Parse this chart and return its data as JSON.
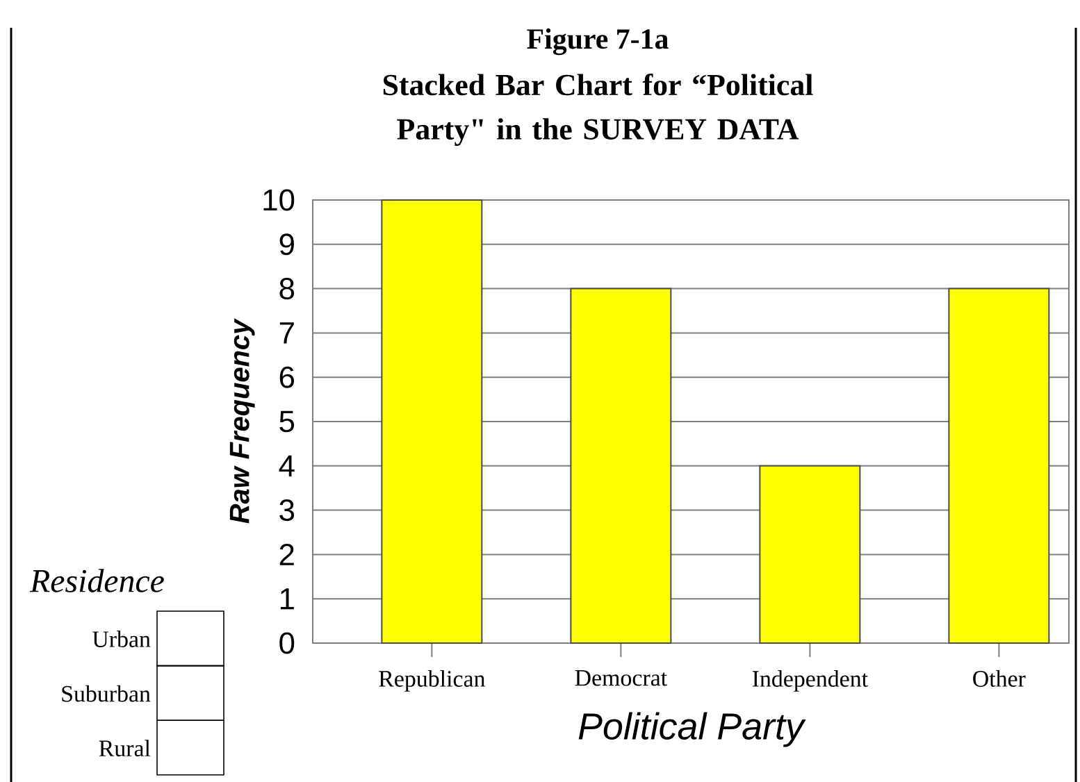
{
  "chart_data": {
    "type": "bar",
    "title": "Figure 7-1a",
    "subtitle": "Stacked Bar Chart for “Political Party\" in the SURVEY DATA",
    "xlabel": "Political Party",
    "ylabel": "Raw Frequency",
    "legend_title": "Residence",
    "categories": [
      "Republican",
      "Democrat",
      "Independent",
      "Other"
    ],
    "values": [
      10,
      8,
      4,
      8
    ],
    "color": "#ffff00",
    "ylim": [
      0,
      10
    ],
    "yticks": [
      0,
      1,
      2,
      3,
      4,
      5,
      6,
      7,
      8,
      9,
      10
    ],
    "grid": "y",
    "annotations": [
      "Urban",
      "Suburban",
      "Rural"
    ]
  }
}
